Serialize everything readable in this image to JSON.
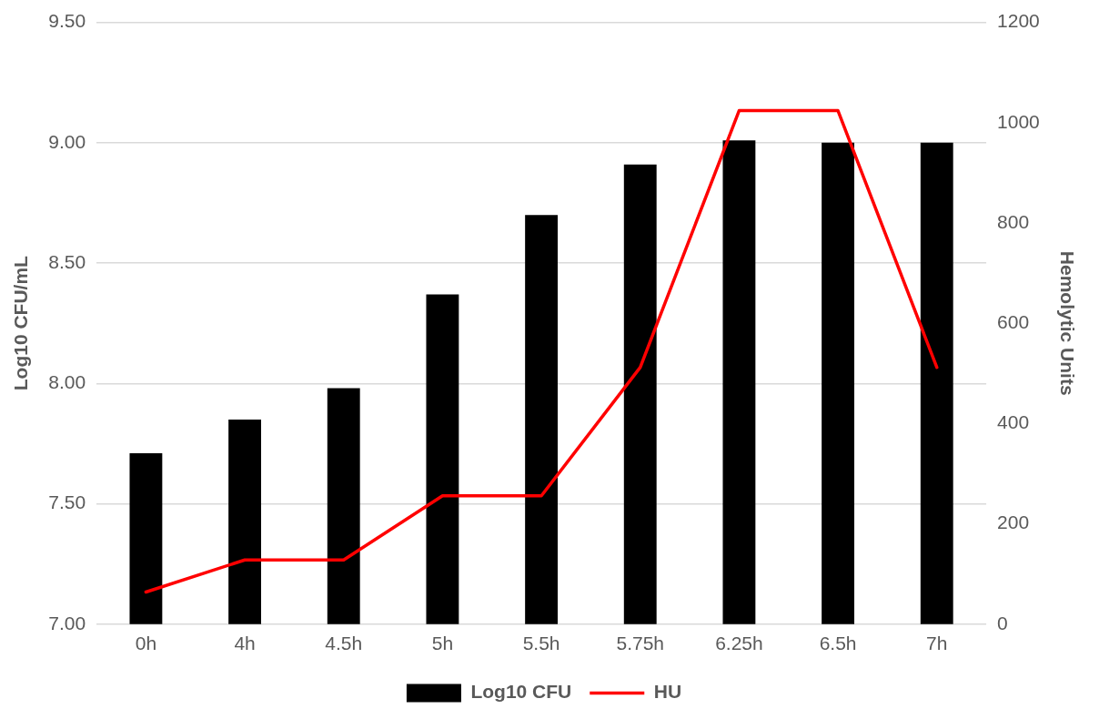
{
  "chart_data": {
    "type": "bar",
    "categories": [
      "0h",
      "4h",
      "4.5h",
      "5h",
      "5.5h",
      "5.75h",
      "6.25h",
      "6.5h",
      "7h"
    ],
    "series": [
      {
        "name": "Log10 CFU",
        "color": "#000000",
        "values": [
          7.71,
          7.85,
          7.98,
          8.37,
          8.7,
          8.91,
          9.01,
          9.0,
          9.0
        ]
      },
      {
        "name": "HU",
        "type": "line",
        "axis": "y2",
        "color": "#ff0000",
        "values": [
          64,
          128,
          128,
          256,
          256,
          512,
          1024,
          1024,
          512
        ]
      }
    ],
    "ylabel": "Log10 CFU/mL",
    "y2label": "Hemolytic Units",
    "ylim": [
      7,
      9.5
    ],
    "yticks": [
      {
        "value": 7,
        "label": "7.00"
      },
      {
        "value": 7.5,
        "label": "7.50"
      },
      {
        "value": 8,
        "label": "8.00"
      },
      {
        "value": 8.5,
        "label": "8.50"
      },
      {
        "value": 9,
        "label": "9.00"
      },
      {
        "value": 9.5,
        "label": "9.50"
      }
    ],
    "y2lim": [
      0,
      1200
    ],
    "y2ticks": [
      0,
      200,
      400,
      600,
      800,
      1000,
      1200
    ],
    "grid": "y",
    "legend": "bottom",
    "marker": "none",
    "line_style": "solid"
  }
}
